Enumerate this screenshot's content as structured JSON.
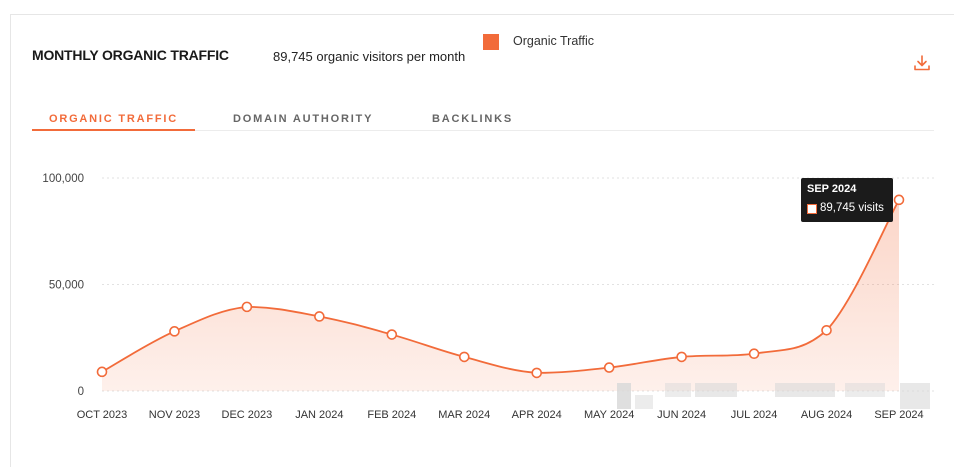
{
  "header": {
    "title": "MONTHLY ORGANIC TRAFFIC",
    "subtitle": "89,745 organic visitors per month"
  },
  "legend": {
    "label": "Organic Traffic",
    "color": "#f26b3a"
  },
  "download": {
    "icon": "download-icon"
  },
  "tabs": [
    {
      "label": "ORGANIC TRAFFIC",
      "active": true
    },
    {
      "label": "DOMAIN AUTHORITY",
      "active": false
    },
    {
      "label": "BACKLINKS",
      "active": false
    }
  ],
  "tooltip": {
    "date": "SEP 2024",
    "value": "89,745 visits"
  },
  "chart_data": {
    "type": "area",
    "categories": [
      "OCT 2023",
      "NOV 2023",
      "DEC 2023",
      "JAN 2024",
      "FEB 2024",
      "MAR 2024",
      "APR 2024",
      "MAY 2024",
      "JUN 2024",
      "JUL 2024",
      "AUG 2024",
      "SEP 2024"
    ],
    "series": [
      {
        "name": "Organic Traffic",
        "values": [
          9000,
          28000,
          39500,
          35000,
          26500,
          16000,
          8500,
          11000,
          16000,
          17500,
          28500,
          89745
        ]
      }
    ],
    "ylim": [
      0,
      100000
    ],
    "yticks": [
      0,
      50000,
      100000
    ],
    "ytick_labels": [
      "0",
      "50,000",
      "100,000"
    ],
    "grid": true,
    "legend_position": "top"
  }
}
